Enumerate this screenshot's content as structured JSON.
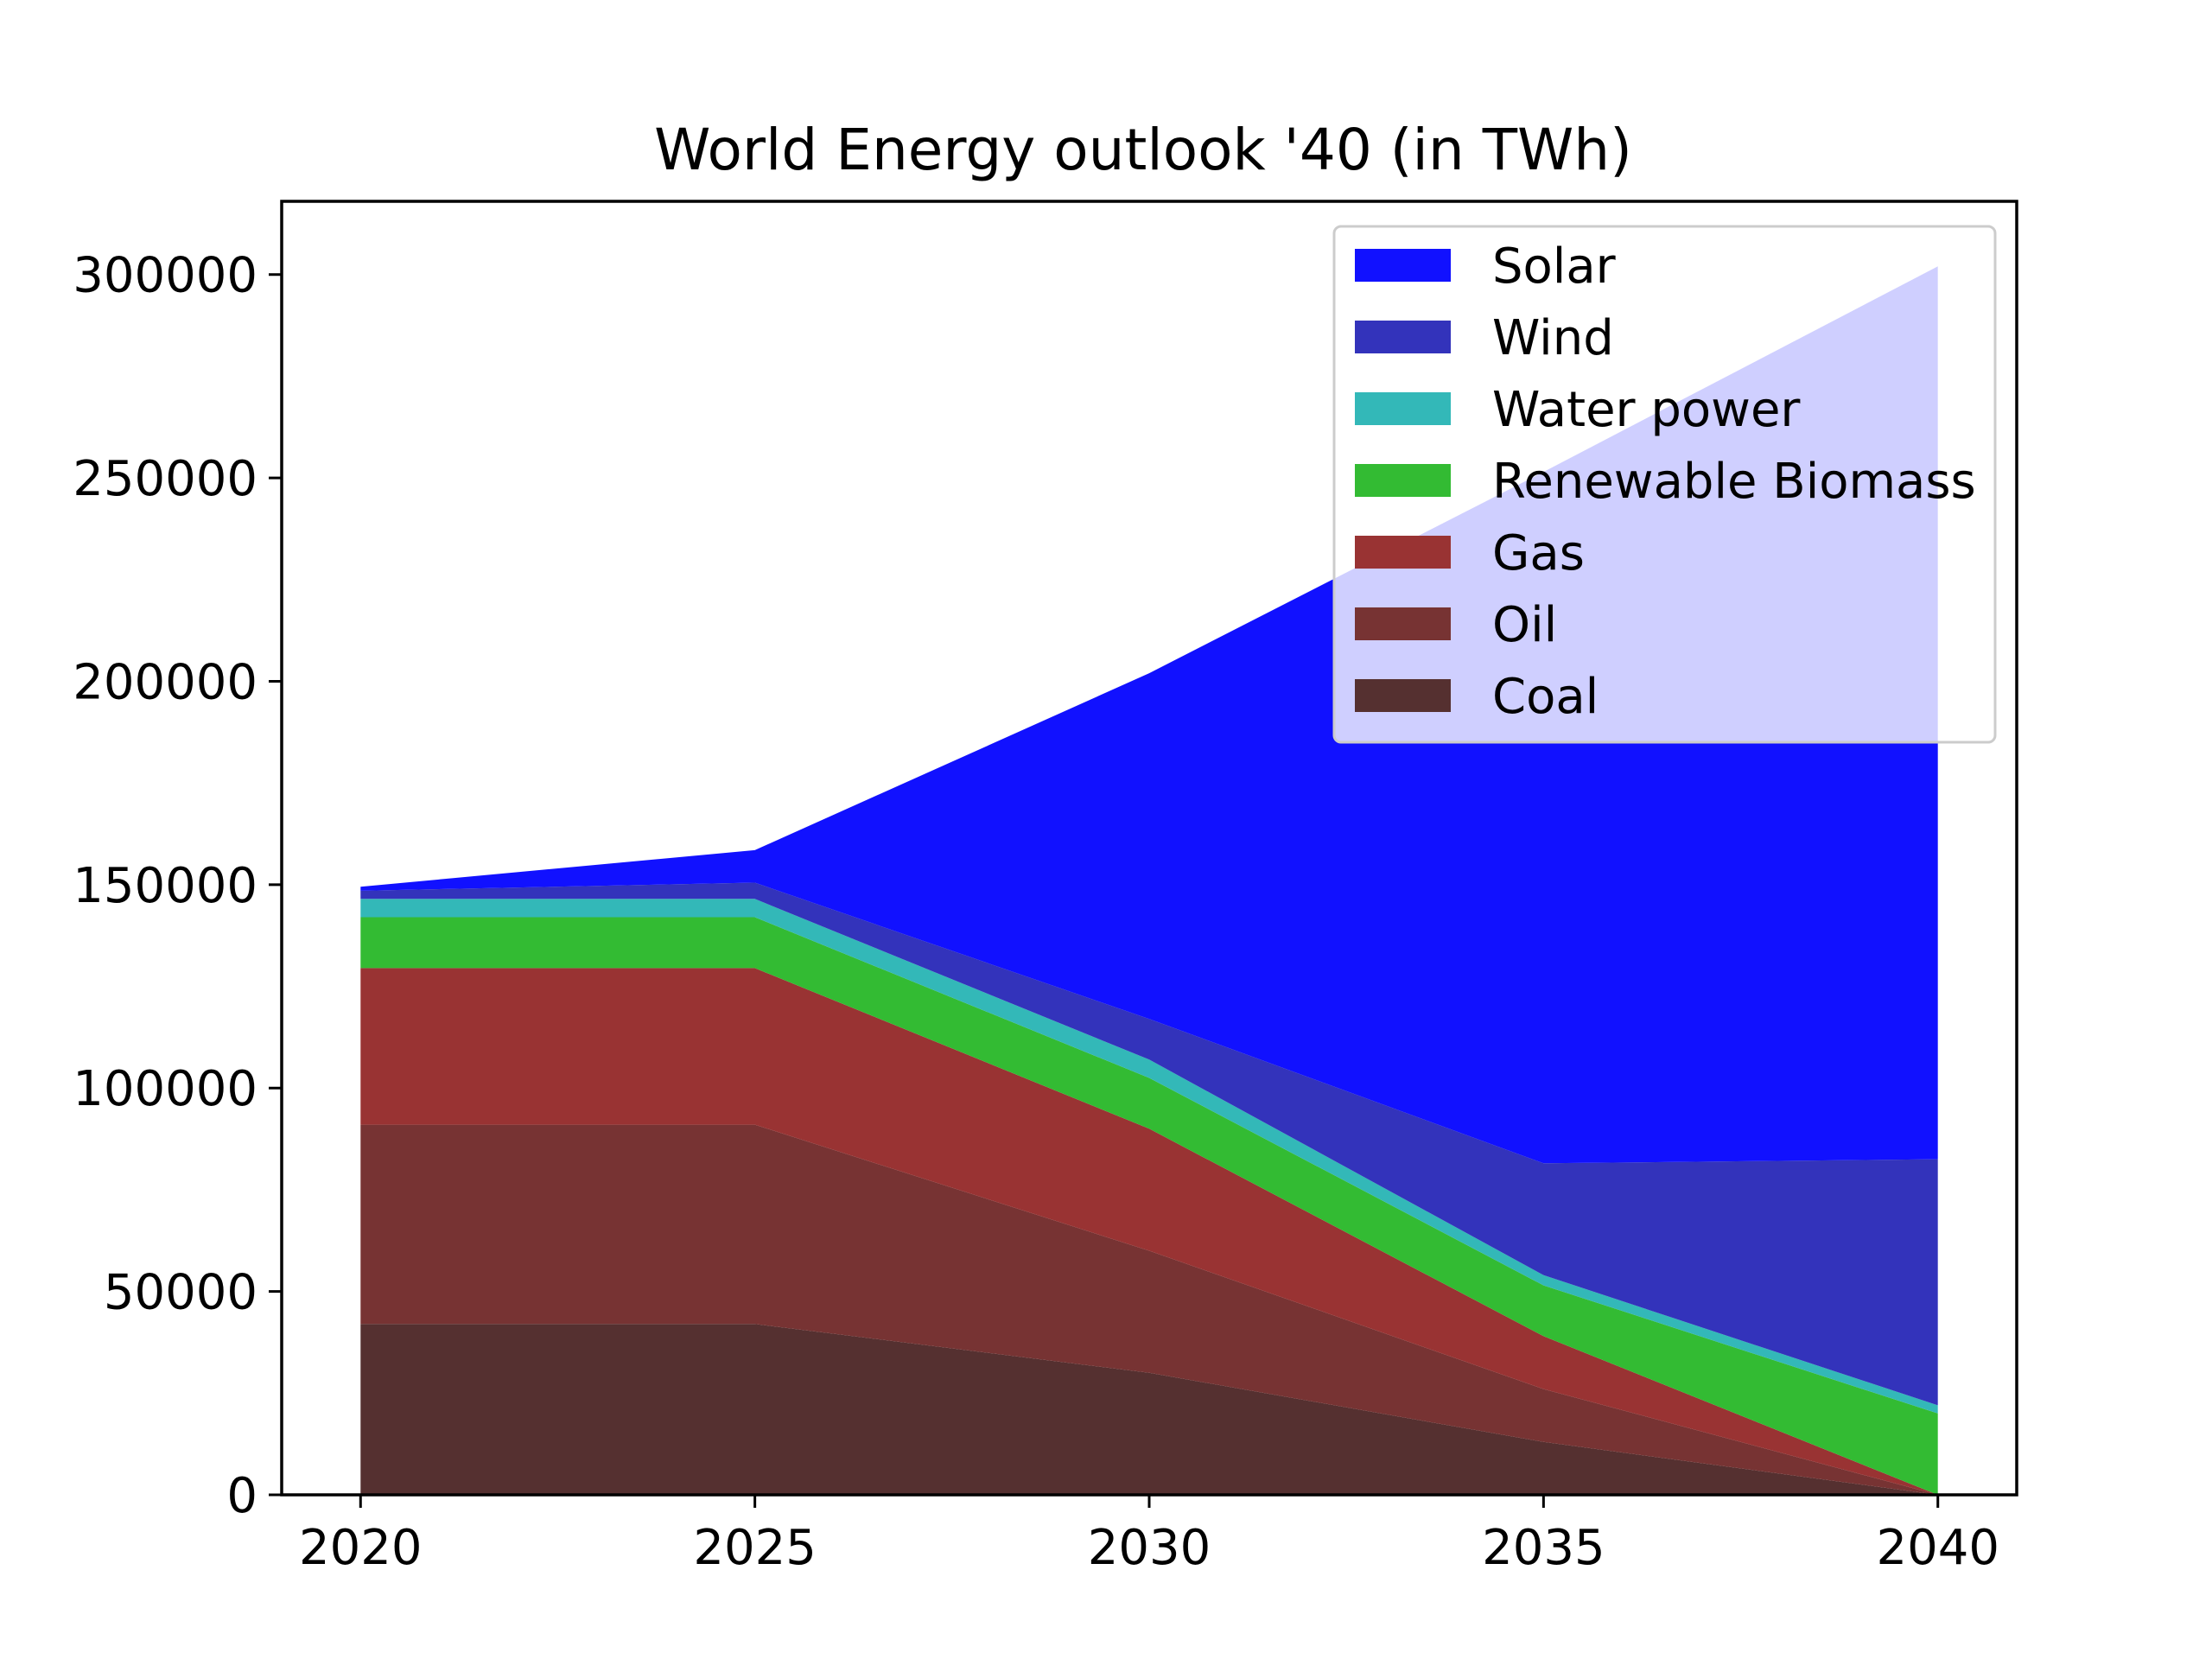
{
  "chart_data": {
    "type": "area",
    "stacked": true,
    "title": "World Energy outlook '40 (in TWh)",
    "xlabel": "",
    "ylabel": "",
    "x": [
      2020,
      2025,
      2030,
      2035,
      2040
    ],
    "xlim": [
      2019,
      2041
    ],
    "ylim": [
      0,
      318000
    ],
    "yticks": [
      0,
      50000,
      100000,
      150000,
      200000,
      250000,
      300000
    ],
    "grid": false,
    "legend_position": "top-right",
    "series": [
      {
        "name": "Coal",
        "color": "#553030",
        "values": [
          42000,
          42000,
          30000,
          13000,
          0
        ]
      },
      {
        "name": "Oil",
        "color": "#773333",
        "values": [
          49000,
          49000,
          30000,
          13000,
          0
        ]
      },
      {
        "name": "Gas",
        "color": "#993333",
        "values": [
          38500,
          38500,
          30000,
          13000,
          0
        ]
      },
      {
        "name": "Renewable Biomass",
        "color": "#33bb33",
        "values": [
          12500,
          12500,
          12500,
          12500,
          20000
        ]
      },
      {
        "name": "Water power",
        "color": "#33b8b8",
        "values": [
          4500,
          4500,
          4500,
          2500,
          2000
        ]
      },
      {
        "name": "Wind",
        "color": "#3333bb",
        "values": [
          2000,
          4000,
          10000,
          27500,
          60500
        ]
      },
      {
        "name": "Solar",
        "color": "#1111ff",
        "values": [
          1000,
          8000,
          85000,
          170000,
          219500
        ]
      }
    ]
  }
}
